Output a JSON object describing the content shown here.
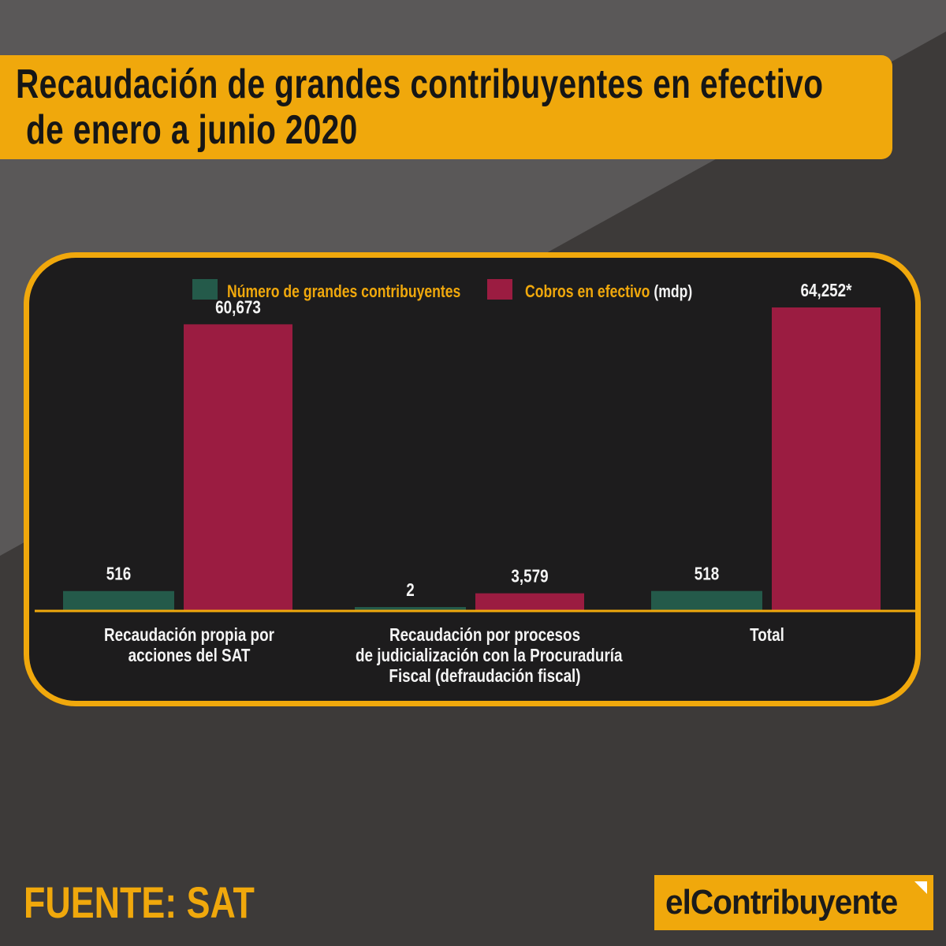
{
  "title": {
    "line1": "Recaudación de grandes contribuyentes en efectivo",
    "line2": "de enero a junio 2020"
  },
  "legend": {
    "series1": "Número de grandes contribuyentes",
    "series2_main": "Cobros en efectivo",
    "series2_unit": "(mdp)"
  },
  "colors": {
    "accent": "#f0a80c",
    "series1": "#245a4a",
    "series2": "#9b1c41",
    "panel": "#1d1c1d",
    "background_dark": "#3d3a39",
    "background_light": "#5a5858"
  },
  "chart_data": {
    "type": "bar",
    "categories": [
      "Recaudación propia por\nacciones del SAT",
      "Recaudación por procesos\nde judicialización con la Procuraduría\nFiscal (defraudación fiscal)",
      "Total"
    ],
    "series": [
      {
        "name": "Número de grandes contribuyentes",
        "values": [
          516,
          2,
          518
        ],
        "labels": [
          "516",
          "2",
          "518"
        ]
      },
      {
        "name": "Cobros en efectivo (mdp)",
        "values": [
          60673,
          3579,
          64252
        ],
        "labels": [
          "60,673",
          "3,579",
          "64,252*"
        ]
      }
    ]
  },
  "source": "FUENTE: SAT",
  "logo": "elContribuyente"
}
